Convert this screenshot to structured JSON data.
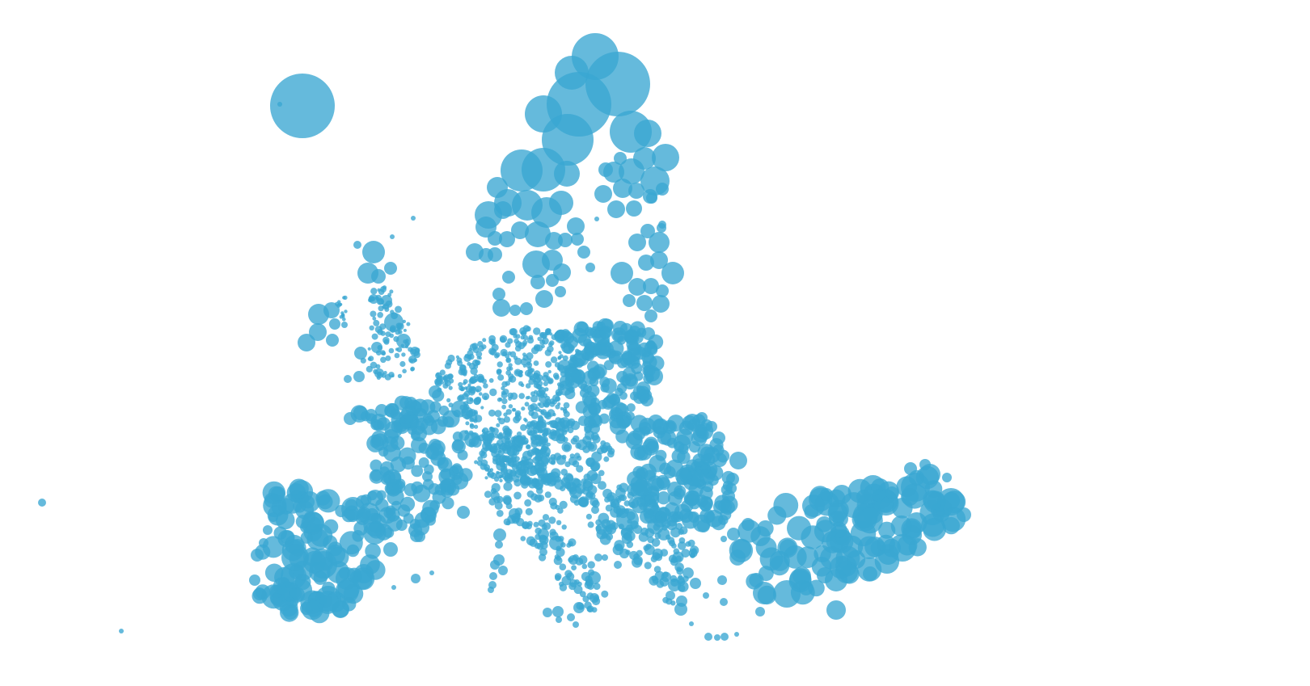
{
  "map": {
    "style": {
      "background": "#ffffff",
      "bubble_fill": "#3aa6d2",
      "bubble_opacity": 0.78
    }
  }
}
